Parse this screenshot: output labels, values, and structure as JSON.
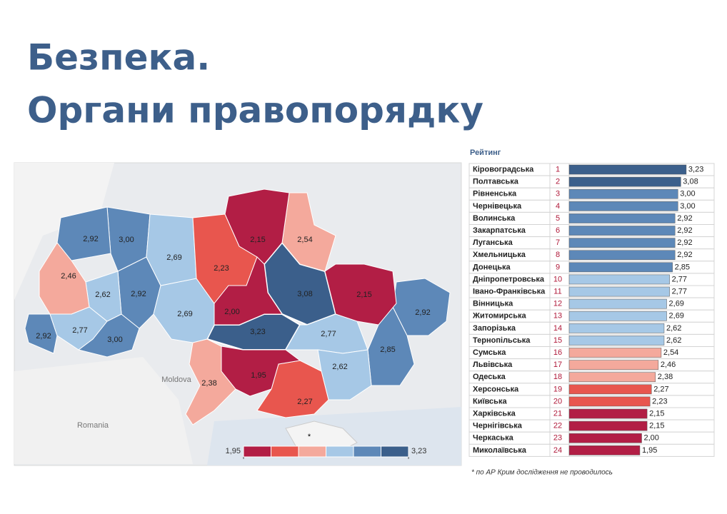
{
  "title": "Безпека.",
  "subtitle": "Органи правопорядку",
  "footnote": "*  по АР Крим дослідження не проводилось",
  "chart_data": [
    {
      "type": "map",
      "values": [
        3.23,
        3.08,
        3.0,
        3.0,
        2.92,
        2.92,
        2.92,
        2.92,
        2.85,
        2.77,
        2.77,
        2.69,
        2.69,
        2.62,
        2.62,
        2.54,
        2.46,
        2.38,
        2.27,
        2.23,
        2.15,
        2.15,
        2.0,
        1.95
      ],
      "value_labels": [
        "3,23",
        "3,08",
        "3,00",
        "3,00",
        "2,92",
        "2,92",
        "2,92",
        "2,92",
        "2,85",
        "2,77",
        "2,77",
        "2,69",
        "2,69",
        "2,62",
        "2,62",
        "2,54",
        "2,46",
        "2,38",
        "2,27",
        "2,23",
        "2,15",
        "2,15",
        "2,00",
        "1,95"
      ],
      "legend_ticks": [
        {
          "value": 1.95,
          "label": "1,95"
        },
        {
          "value": 3.23,
          "label": "3,23"
        }
      ],
      "colors": [
        "#b21e45",
        "#e8564e",
        "#f4a99c",
        "#a6c8e6",
        "#5d88b8",
        "#3b5f8b"
      ],
      "annotation": "*",
      "place_labels": [
        "Moldova",
        "Romania"
      ]
    },
    {
      "type": "bar",
      "title": "Рейтинг",
      "categories": [
        "Кіровоградська",
        "Полтавська",
        "Рівненська",
        "Чернівецька",
        "Волинська",
        "Закарпатська",
        "Луганська",
        "Хмельницька",
        "Донецька",
        "Дніпропетровська",
        "Івано-Франківська",
        "Вінницька",
        "Житомирська",
        "Запорізька",
        "Тернопільська",
        "Сумська",
        "Львівська",
        "Одеська",
        "Херсонська",
        "Київська",
        "Харківська",
        "Чернігівська",
        "Черкаська",
        "Миколаївська"
      ],
      "ranks": [
        1,
        2,
        3,
        4,
        5,
        6,
        7,
        8,
        9,
        10,
        11,
        12,
        13,
        14,
        15,
        16,
        17,
        18,
        19,
        20,
        21,
        22,
        23,
        24
      ],
      "values": [
        3.23,
        3.08,
        3.0,
        3.0,
        2.92,
        2.92,
        2.92,
        2.92,
        2.85,
        2.77,
        2.77,
        2.69,
        2.69,
        2.62,
        2.62,
        2.54,
        2.46,
        2.38,
        2.27,
        2.23,
        2.15,
        2.15,
        2.0,
        1.95
      ],
      "value_labels": [
        "3,23",
        "3,08",
        "3,00",
        "3,00",
        "2,92",
        "2,92",
        "2,92",
        "2,92",
        "2,85",
        "2,77",
        "2,77",
        "2,69",
        "2,69",
        "2,62",
        "2,62",
        "2,54",
        "2,46",
        "2,38",
        "2,27",
        "2,23",
        "2,15",
        "2,15",
        "2,00",
        "1,95"
      ],
      "xlim": [
        0,
        4
      ]
    }
  ]
}
